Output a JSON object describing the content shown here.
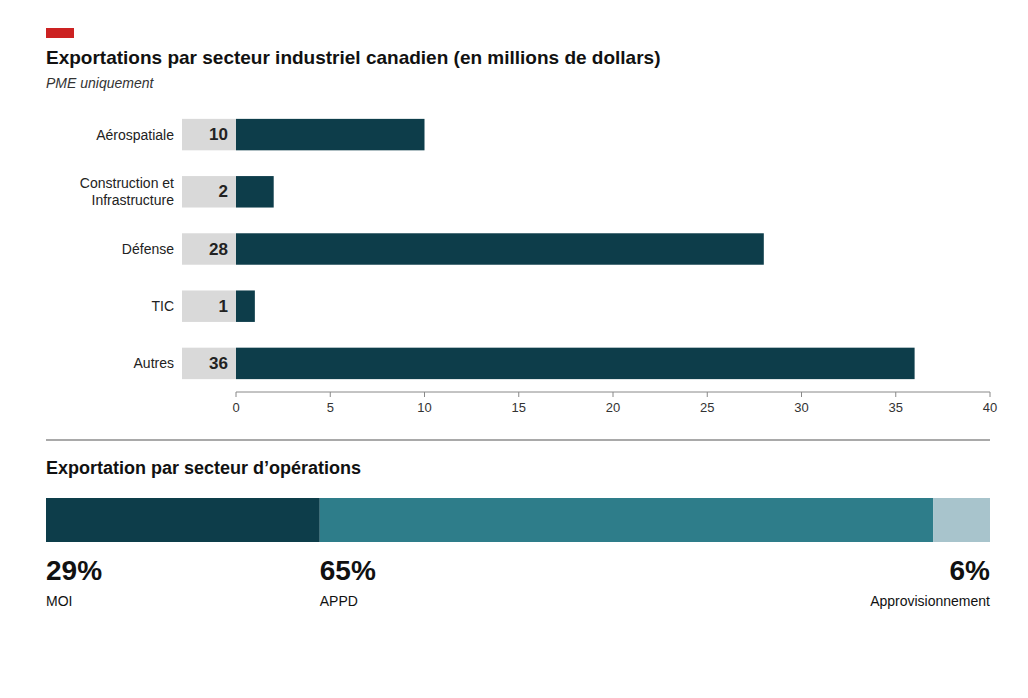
{
  "chart_data": [
    {
      "type": "bar",
      "orientation": "horizontal",
      "title": "Exportations par secteur industriel canadien (en millions de dollars)",
      "subtitle": "PME uniquement",
      "categories": [
        "Aérospatiale",
        "Construction et\nInfrastructure",
        "Défense",
        "TIC",
        "Autres"
      ],
      "values": [
        10,
        2,
        28,
        1,
        36
      ],
      "color": "#0d3d4a",
      "xlim": [
        0,
        40
      ],
      "xticks": [
        0,
        5,
        10,
        15,
        20,
        25,
        30,
        35,
        40
      ],
      "data_labels": true,
      "grid": false
    },
    {
      "type": "bar",
      "orientation": "horizontal",
      "stacked": true,
      "title": "Exportation par secteur d’opérations",
      "series": [
        {
          "name": "MOI",
          "color": "#0d3d4a",
          "values": [
            29
          ],
          "value_labels": [
            "29%"
          ]
        },
        {
          "name": "APPD",
          "color": "#2e7d8a",
          "values": [
            65
          ],
          "value_labels": [
            "65%"
          ]
        },
        {
          "name": "Approvisionnement",
          "color": "#a8c4cc",
          "values": [
            6
          ],
          "value_labels": [
            "6%"
          ]
        }
      ],
      "xlim": [
        0,
        100
      ],
      "data_labels": true,
      "tick_labels": false,
      "grid": false
    }
  ]
}
